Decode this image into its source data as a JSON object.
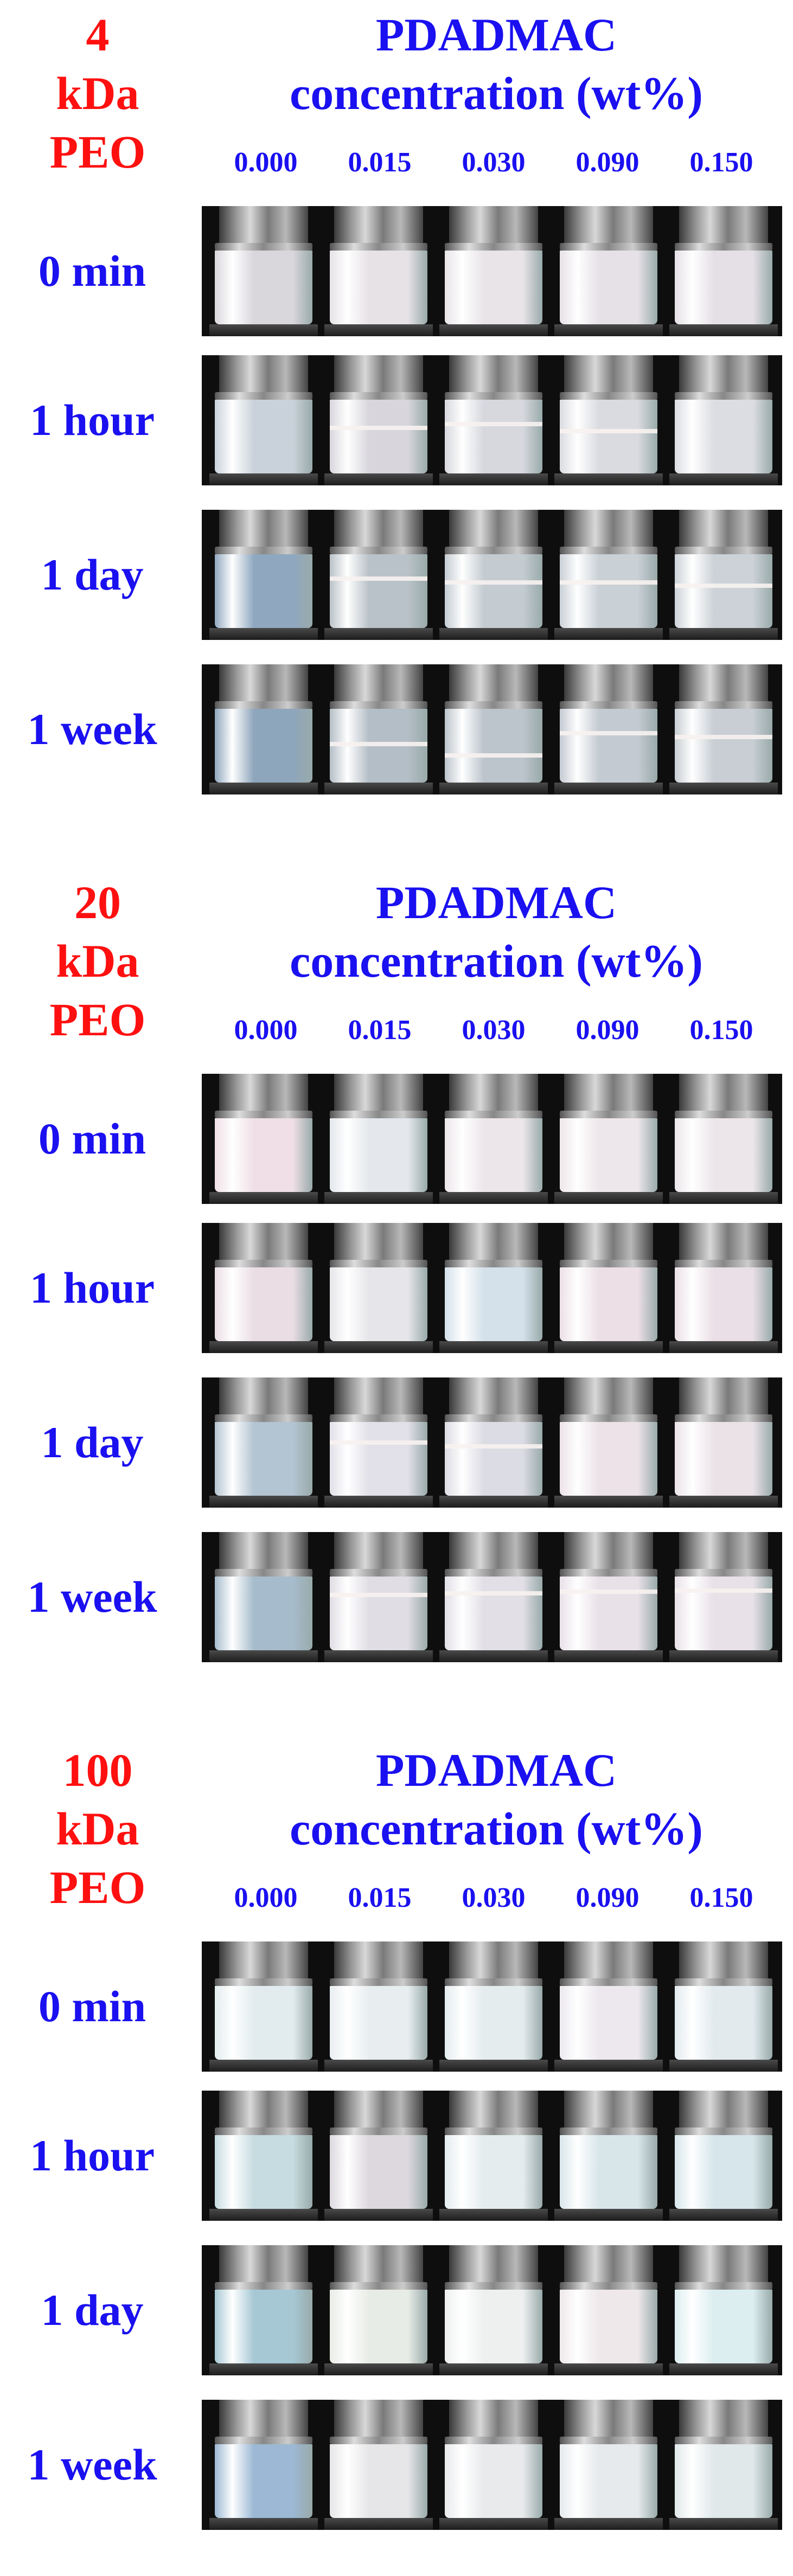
{
  "concentrations": [
    "0.000",
    "0.015",
    "0.030",
    "0.090",
    "0.150"
  ],
  "panels": [
    {
      "peo_lines": [
        "4",
        "kDa",
        "PEO"
      ],
      "title_lines": [
        "PDADMAC",
        "concentration (wt%)"
      ],
      "rows": [
        {
          "label": "0 min"
        },
        {
          "label": "1 hour"
        },
        {
          "label": "1 day"
        },
        {
          "label": "1 week"
        }
      ]
    },
    {
      "peo_lines": [
        "20",
        "kDa",
        "PEO"
      ],
      "title_lines": [
        "PDADMAC",
        "concentration (wt%)"
      ],
      "rows": [
        {
          "label": "0 min"
        },
        {
          "label": "1 hour"
        },
        {
          "label": "1 day"
        },
        {
          "label": "1 week"
        }
      ]
    },
    {
      "peo_lines": [
        "100",
        "kDa",
        "PEO"
      ],
      "title_lines": [
        "PDADMAC",
        "concentration (wt%)"
      ],
      "rows": [
        {
          "label": "0 min"
        },
        {
          "label": "1 hour"
        },
        {
          "label": "1 day"
        },
        {
          "label": "1 week"
        }
      ]
    }
  ],
  "colors": {
    "peo_label": "#ff1010",
    "text_blue": "#1a10f0",
    "photo_background": "#0e0e0e"
  }
}
